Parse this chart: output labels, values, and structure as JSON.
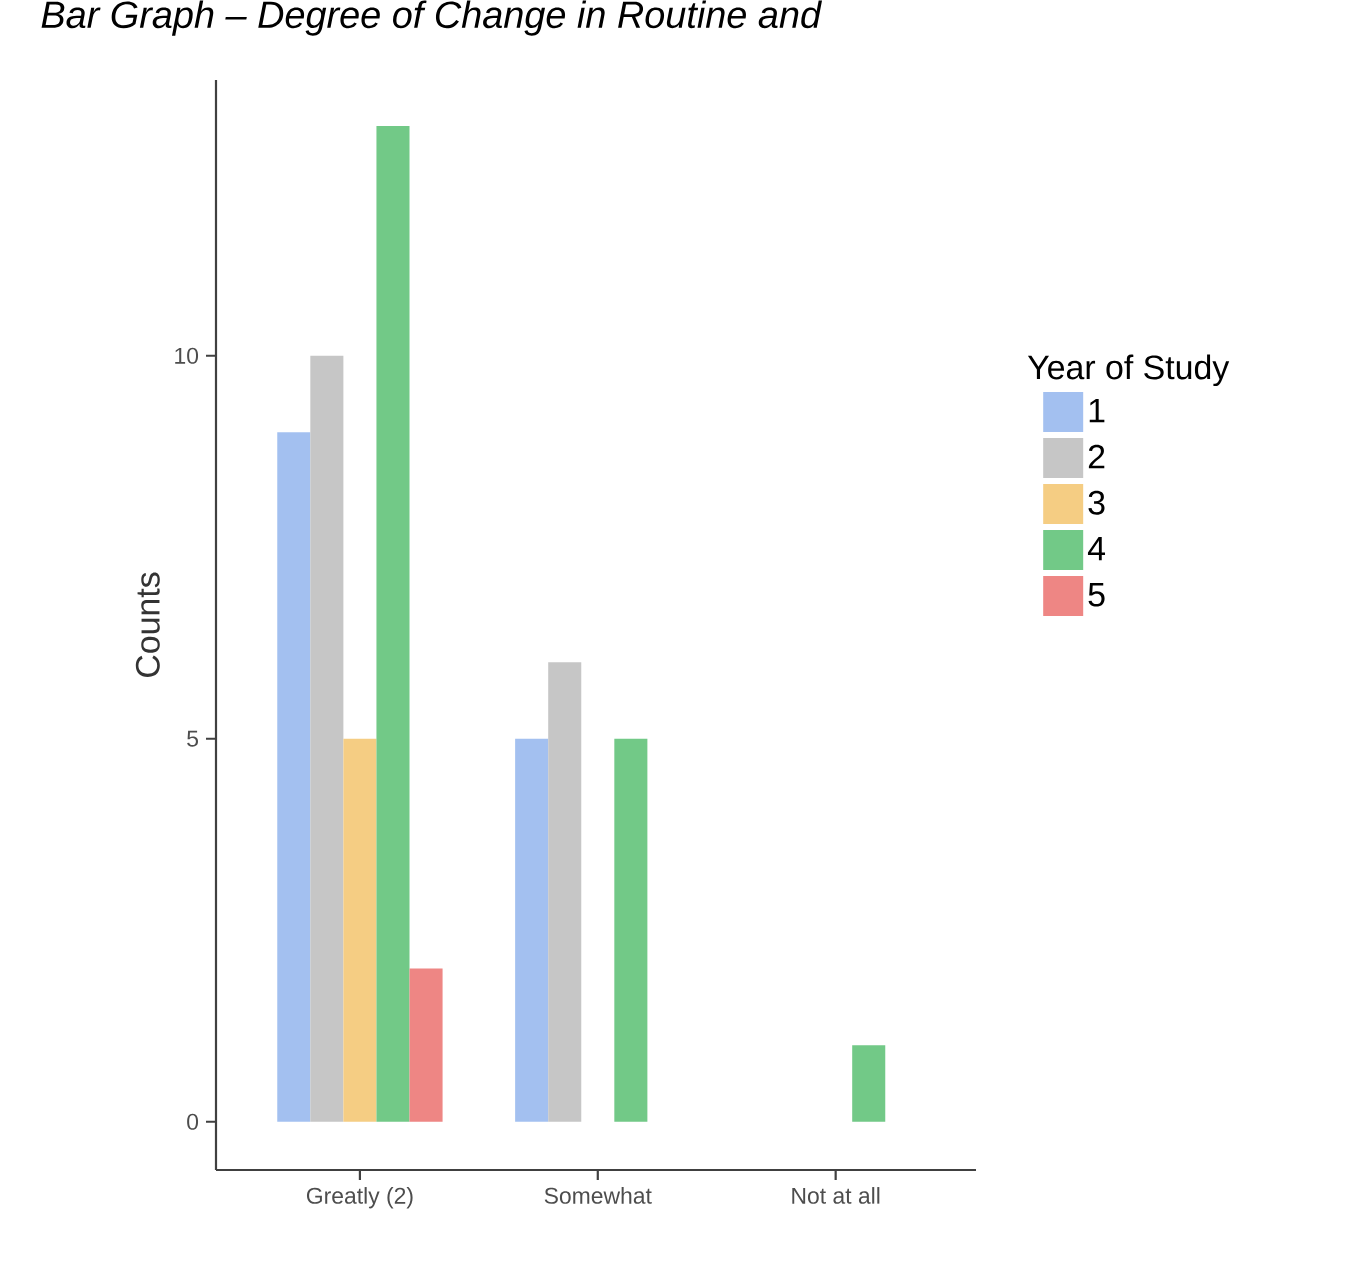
{
  "chart_data": {
    "type": "bar",
    "title": "Bar Graph – Degree of Change in Routine and",
    "categories": [
      "Greatly (2)",
      "Somewhat",
      "Not at all"
    ],
    "series": [
      {
        "name": "1",
        "color": "#a3c0f0",
        "values": [
          9,
          5,
          0
        ]
      },
      {
        "name": "2",
        "color": "#c6c6c6",
        "values": [
          10,
          6,
          0
        ]
      },
      {
        "name": "3",
        "color": "#f5cd83",
        "values": [
          5,
          0,
          0
        ]
      },
      {
        "name": "4",
        "color": "#72c987",
        "values": [
          13,
          5,
          1
        ]
      },
      {
        "name": "5",
        "color": "#ee8684",
        "values": [
          2,
          0,
          0
        ]
      }
    ],
    "ylabel": "Counts",
    "ylim": [
      -0.63,
      13.6
    ],
    "yticks": [
      0,
      5,
      10
    ],
    "legend_title": "Year of Study",
    "legend": "right"
  }
}
